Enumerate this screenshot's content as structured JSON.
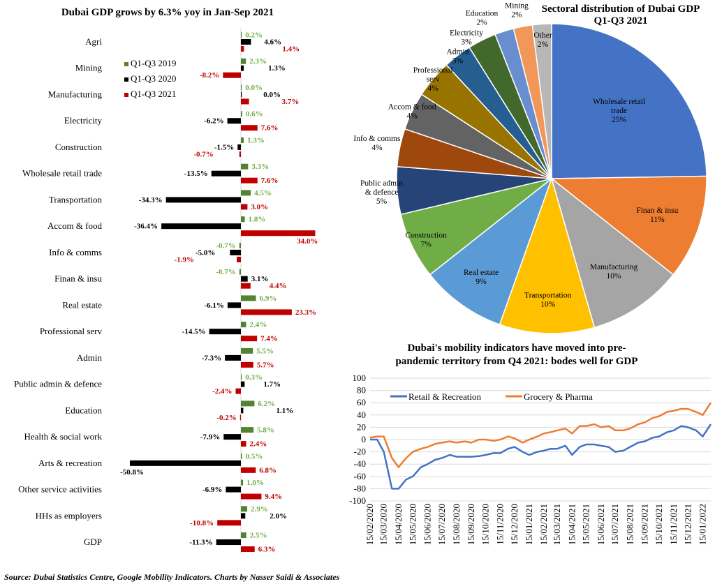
{
  "source_note": "Source: Dubai Statistics Centre, Google Mobility Indicators. Charts by Nasser Saidi & Associates",
  "chart_data": [
    {
      "type": "bar",
      "orientation": "horizontal",
      "title": "Dubai GDP grows by 6.3% yoy in Jan-Sep 2021",
      "unit": "%",
      "legend_position": "top-left",
      "categories": [
        "Agri",
        "Mining",
        "Manufacturing",
        "Electricity",
        "Construction",
        "Wholesale retail trade",
        "Transportation",
        "Accom & food",
        "Info & comms",
        "Finan & insu",
        "Real estate",
        "Professional serv",
        "Admin",
        "Public admin & defence",
        "Education",
        "Health & social work",
        "Arts & recreation",
        "Other service activities",
        "HHs as employers",
        "GDP"
      ],
      "series": [
        {
          "name": "Q1-Q3 2019",
          "color": "#548235",
          "label_color": "#70AD47",
          "values": [
            0.2,
            2.3,
            0.0,
            0.6,
            1.3,
            3.3,
            4.5,
            1.8,
            -0.7,
            -0.7,
            6.9,
            2.4,
            5.5,
            0.3,
            6.2,
            5.8,
            0.5,
            1.0,
            2.9,
            2.5
          ]
        },
        {
          "name": "Q1-Q3 2020",
          "color": "#000000",
          "label_color": "#000000",
          "values": [
            4.6,
            1.3,
            0.0,
            -6.2,
            -1.5,
            -13.5,
            -34.3,
            -36.4,
            -5.0,
            3.1,
            -6.1,
            -14.5,
            -7.3,
            1.7,
            1.1,
            -7.9,
            -50.8,
            -6.9,
            2.0,
            -11.3
          ]
        },
        {
          "name": "Q1-Q3 2021",
          "color": "#C00000",
          "label_color": "#C00000",
          "values": [
            1.4,
            -8.2,
            3.7,
            7.6,
            -0.7,
            7.6,
            3.0,
            34.0,
            -1.9,
            4.4,
            23.3,
            7.4,
            5.7,
            -2.4,
            -0.2,
            2.4,
            6.8,
            9.4,
            -10.8,
            6.3
          ]
        }
      ]
    },
    {
      "type": "pie",
      "title": [
        "Sectoral distribution of Dubai GDP",
        "Q1-Q3 2021"
      ],
      "slices": [
        {
          "label": "Wholesale retail trade",
          "value": 25,
          "color": "#4472C4"
        },
        {
          "label": "Finan & insu",
          "value": 11,
          "color": "#ED7D31"
        },
        {
          "label": "Manufacturing",
          "value": 10,
          "color": "#A5A5A5"
        },
        {
          "label": "Transportation",
          "value": 10,
          "color": "#FFC000"
        },
        {
          "label": "Real estate",
          "value": 9,
          "color": "#5B9BD5"
        },
        {
          "label": "Construction",
          "value": 7,
          "color": "#70AD47"
        },
        {
          "label": "Public admin & defence",
          "value": 5,
          "color": "#264478"
        },
        {
          "label": "Info & comms",
          "value": 4,
          "color": "#9E480E"
        },
        {
          "label": "Accom & food",
          "value": 4,
          "color": "#636363"
        },
        {
          "label": "Professional serv",
          "value": 4,
          "color": "#997300"
        },
        {
          "label": "Admin",
          "value": 3,
          "color": "#255E91"
        },
        {
          "label": "Electricity",
          "value": 3,
          "color": "#43682B"
        },
        {
          "label": "Education",
          "value": 2,
          "color": "#698ED0"
        },
        {
          "label": "Mining",
          "value": 2,
          "color": "#F1975A"
        },
        {
          "label": "Other",
          "value": 2,
          "color": "#B7B7B7"
        }
      ]
    },
    {
      "type": "line",
      "title": [
        "Dubai's mobility indicators have moved into pre-",
        "pandemic territory from Q4 2021: bodes well for GDP"
      ],
      "ylim": [
        -100,
        100
      ],
      "yticks": [
        100,
        80,
        60,
        40,
        20,
        0,
        -20,
        -40,
        -60,
        -80,
        -100
      ],
      "grid": true,
      "legend_position": "top",
      "xticks": [
        "15/02/2020",
        "15/03/2020",
        "15/04/2020",
        "15/05/2020",
        "15/06/2020",
        "15/07/2020",
        "15/08/2020",
        "15/09/2020",
        "15/10/2020",
        "15/11/2020",
        "15/12/2020",
        "15/01/2021",
        "15/02/2021",
        "15/03/2021",
        "15/04/2021",
        "15/05/2021",
        "15/06/2021",
        "15/07/2021",
        "15/08/2021",
        "15/09/2021",
        "15/10/2021",
        "15/11/2021",
        "15/12/2021",
        "15/01/2022"
      ],
      "x": [
        "15/02/2020",
        "01/03/2020",
        "15/03/2020",
        "01/04/2020",
        "15/04/2020",
        "01/05/2020",
        "15/05/2020",
        "01/06/2020",
        "15/06/2020",
        "01/07/2020",
        "15/07/2020",
        "01/08/2020",
        "15/08/2020",
        "01/09/2020",
        "15/09/2020",
        "01/10/2020",
        "15/10/2020",
        "01/11/2020",
        "15/11/2020",
        "01/12/2020",
        "15/12/2020",
        "01/01/2021",
        "15/01/2021",
        "01/02/2021",
        "15/02/2021",
        "01/03/2021",
        "15/03/2021",
        "01/04/2021",
        "15/04/2021",
        "01/05/2021",
        "15/05/2021",
        "01/06/2021",
        "15/06/2021",
        "01/07/2021",
        "15/07/2021",
        "01/08/2021",
        "15/08/2021",
        "01/09/2021",
        "15/09/2021",
        "01/10/2021",
        "15/10/2021",
        "01/11/2021",
        "15/11/2021",
        "01/12/2021",
        "15/12/2021",
        "01/01/2022",
        "15/01/2022",
        "01/02/2022"
      ],
      "series": [
        {
          "name": "Retail & Recreation",
          "color": "#4472C4",
          "values": [
            0,
            0,
            -20,
            -80,
            -80,
            -65,
            -60,
            -45,
            -40,
            -33,
            -30,
            -25,
            -28,
            -28,
            -28,
            -27,
            -25,
            -22,
            -22,
            -15,
            -12,
            -20,
            -25,
            -20,
            -18,
            -15,
            -15,
            -10,
            -25,
            -12,
            -8,
            -8,
            -10,
            -12,
            -20,
            -18,
            -12,
            -5,
            -3,
            3,
            5,
            12,
            15,
            22,
            20,
            15,
            5,
            25
          ]
        },
        {
          "name": "Grocery & Pharma",
          "color": "#ED7D31",
          "values": [
            3,
            5,
            5,
            -30,
            -45,
            -30,
            -20,
            -15,
            -12,
            -7,
            -5,
            -3,
            -5,
            -3,
            -5,
            0,
            0,
            -2,
            0,
            5,
            2,
            -5,
            0,
            5,
            10,
            12,
            15,
            18,
            10,
            22,
            22,
            25,
            20,
            22,
            15,
            15,
            18,
            25,
            28,
            35,
            38,
            45,
            47,
            50,
            50,
            45,
            40,
            60
          ]
        }
      ]
    }
  ]
}
